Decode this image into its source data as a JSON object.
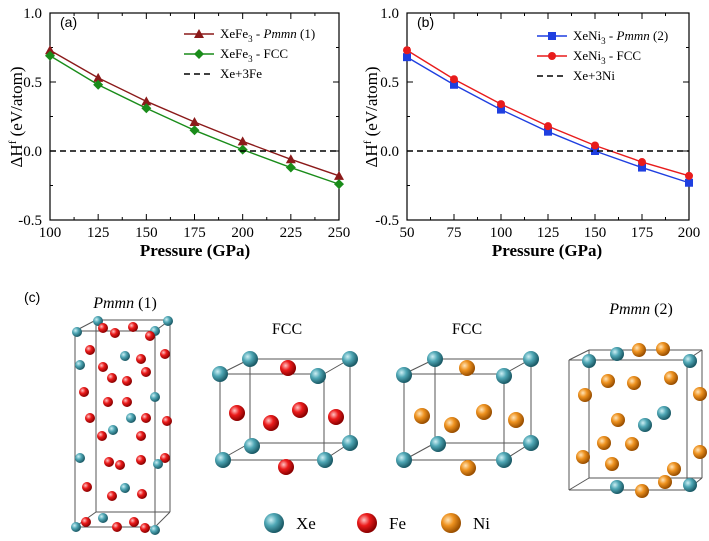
{
  "chart_data": [
    {
      "type": "line",
      "panel_label": "(a)",
      "xlabel": "Pressure (GPa)",
      "ylabel": "ΔH",
      "ylabel_sup": "f",
      "ylabel_unit": " (eV/atom)",
      "xlim": [
        100,
        250
      ],
      "ylim": [
        -0.5,
        1.0
      ],
      "xticks": [
        100,
        125,
        150,
        175,
        200,
        225,
        250
      ],
      "yticks": [
        -0.5,
        0.0,
        0.5,
        1.0
      ],
      "ytick_labels": [
        "-0.5",
        "0.0",
        "0.5",
        "1.0"
      ],
      "x": [
        100,
        125,
        150,
        175,
        200,
        225,
        250
      ],
      "series": [
        {
          "name": "XeFe3 - Pmmn (1)",
          "legend_base": "XeFe",
          "legend_sub": "3",
          "legend_sep": " - ",
          "legend_italic": "Pmmn",
          "legend_tail": " (1)",
          "color": "#8b1a1a",
          "marker": "triangle",
          "values": [
            0.73,
            0.53,
            0.36,
            0.21,
            0.07,
            -0.06,
            -0.18
          ]
        },
        {
          "name": "XeFe3 - FCC",
          "legend_base": "XeFe",
          "legend_sub": "3",
          "legend_sep": " - FCC",
          "legend_italic": "",
          "legend_tail": "",
          "color": "#1a8c1a",
          "marker": "diamond",
          "values": [
            0.69,
            0.48,
            0.31,
            0.15,
            0.01,
            -0.12,
            -0.24
          ]
        },
        {
          "name": "Xe+3Fe",
          "legend_base": "Xe+3Fe",
          "legend_sub": "",
          "legend_sep": "",
          "legend_italic": "",
          "legend_tail": "",
          "color": "#000000",
          "marker": "dash",
          "values": [
            0,
            0,
            0,
            0,
            0,
            0,
            0
          ]
        }
      ]
    },
    {
      "type": "line",
      "panel_label": "(b)",
      "xlabel": "Pressure (GPa)",
      "ylabel": "ΔH",
      "ylabel_sup": "f",
      "ylabel_unit": " (eV/atom)",
      "xlim": [
        50,
        200
      ],
      "ylim": [
        -0.5,
        1.0
      ],
      "xticks": [
        50,
        75,
        100,
        125,
        150,
        175,
        200
      ],
      "yticks": [
        -0.5,
        0.0,
        0.5,
        1.0
      ],
      "ytick_labels": [
        "-0.5",
        "0.0",
        "0.5",
        "1.0"
      ],
      "x": [
        50,
        75,
        100,
        125,
        150,
        175,
        200
      ],
      "series": [
        {
          "name": "XeNi3 - Pmmn (2)",
          "legend_base": "XeNi",
          "legend_sub": "3",
          "legend_sep": " - ",
          "legend_italic": "Pmmn",
          "legend_tail": " (2)",
          "color": "#1f3fe0",
          "marker": "square",
          "values": [
            0.68,
            0.48,
            0.3,
            0.14,
            0.0,
            -0.12,
            -0.23
          ]
        },
        {
          "name": "XeNi3 - FCC",
          "legend_base": "XeNi",
          "legend_sub": "3",
          "legend_sep": " - FCC",
          "legend_italic": "",
          "legend_tail": "",
          "color": "#e81c1c",
          "marker": "circle",
          "values": [
            0.73,
            0.52,
            0.34,
            0.18,
            0.04,
            -0.08,
            -0.18
          ]
        },
        {
          "name": "Xe+3Ni",
          "legend_base": "Xe+3Ni",
          "legend_sub": "",
          "legend_sep": "",
          "legend_italic": "",
          "legend_tail": "",
          "color": "#000000",
          "marker": "dash",
          "values": [
            0,
            0,
            0,
            0,
            0,
            0,
            0
          ]
        }
      ]
    }
  ],
  "structures": {
    "panel_label": "(c)",
    "titles": {
      "pmmn1": {
        "italic": "Pmmn",
        "tail": " (1)"
      },
      "fcc_fe": "FCC",
      "fcc_ni": "FCC",
      "pmmn2": {
        "italic": "Pmmn",
        "tail": " (2)"
      }
    },
    "legend": [
      {
        "label": "Xe",
        "color": "#3a96a6"
      },
      {
        "label": "Fe",
        "color": "#e31414"
      },
      {
        "label": "Ni",
        "color": "#ec8a1a"
      }
    ]
  }
}
